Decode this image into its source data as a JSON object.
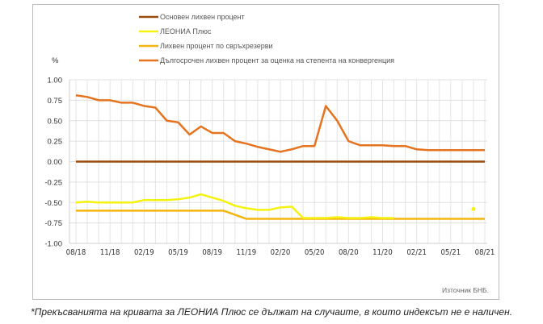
{
  "chart_data": {
    "type": "line",
    "ylabel": "%",
    "ylim": [
      -1.0,
      1.0
    ],
    "yticks": [
      "1.00",
      "0.75",
      "0.50",
      "0.25",
      "0.00",
      "-0.25",
      "-0.50",
      "-0.75",
      "-1.00"
    ],
    "ytick_values": [
      1.0,
      0.75,
      0.5,
      0.25,
      0.0,
      -0.25,
      -0.5,
      -0.75,
      -1.0
    ],
    "x": [
      "08/18",
      "09/18",
      "10/18",
      "11/18",
      "12/18",
      "01/19",
      "02/19",
      "03/19",
      "04/19",
      "05/19",
      "06/19",
      "07/19",
      "08/19",
      "09/19",
      "10/19",
      "11/19",
      "12/19",
      "01/20",
      "02/20",
      "03/20",
      "04/20",
      "05/20",
      "06/20",
      "07/20",
      "08/20",
      "09/20",
      "10/20",
      "11/20",
      "12/20",
      "01/21",
      "02/21",
      "03/21",
      "04/21",
      "05/21",
      "06/21",
      "07/21",
      "08/21"
    ],
    "xtick_labels": [
      "08/18",
      "11/18",
      "02/19",
      "05/19",
      "08/19",
      "11/19",
      "02/20",
      "05/20",
      "08/20",
      "11/20",
      "02/21",
      "05/21",
      "08/21"
    ],
    "grid": true,
    "legend_placement": "top",
    "series": [
      {
        "name": "Основен лихвен процент",
        "color": "#9c4a0c",
        "values": [
          0,
          0,
          0,
          0,
          0,
          0,
          0,
          0,
          0,
          0,
          0,
          0,
          0,
          0,
          0,
          0,
          0,
          0,
          0,
          0,
          0,
          0,
          0,
          0,
          0,
          0,
          0,
          0,
          0,
          0,
          0,
          0,
          0,
          0,
          0,
          0,
          0
        ]
      },
      {
        "name": "ЛЕОНИА Плюс",
        "color": "#f5f20e",
        "values": [
          -0.5,
          -0.49,
          -0.5,
          -0.5,
          -0.5,
          -0.5,
          -0.47,
          -0.47,
          -0.47,
          -0.46,
          -0.44,
          -0.4,
          -0.44,
          -0.48,
          -0.54,
          -0.57,
          -0.59,
          -0.59,
          -0.56,
          -0.55,
          -0.69,
          -0.69,
          -0.69,
          -0.68,
          -0.69,
          -0.69,
          -0.68,
          -0.69,
          -0.69,
          null,
          null,
          null,
          null,
          null,
          null,
          -0.58,
          null
        ]
      },
      {
        "name": "Лихвен процент по свръхрезерви",
        "color": "#f5b50f",
        "values": [
          -0.6,
          -0.6,
          -0.6,
          -0.6,
          -0.6,
          -0.6,
          -0.6,
          -0.6,
          -0.6,
          -0.6,
          -0.6,
          -0.6,
          -0.6,
          -0.6,
          -0.65,
          -0.7,
          -0.7,
          -0.7,
          -0.7,
          -0.7,
          -0.7,
          -0.7,
          -0.7,
          -0.7,
          -0.7,
          -0.7,
          -0.7,
          -0.7,
          -0.7,
          -0.7,
          -0.7,
          -0.7,
          -0.7,
          -0.7,
          -0.7,
          -0.7,
          -0.7
        ]
      },
      {
        "name": "Дългосрочен лихвен процент за оценка на степента на конвергенция",
        "color": "#e5731f",
        "values": [
          0.81,
          0.79,
          0.75,
          0.75,
          0.72,
          0.72,
          0.68,
          0.66,
          0.5,
          0.48,
          0.33,
          0.43,
          0.35,
          0.35,
          0.25,
          0.22,
          0.18,
          0.15,
          0.12,
          0.15,
          0.19,
          0.19,
          0.68,
          0.5,
          0.25,
          0.2,
          0.2,
          0.2,
          0.19,
          0.19,
          0.15,
          0.14,
          0.14,
          0.14,
          0.14,
          0.14,
          0.14
        ]
      }
    ],
    "source": "Източник БНБ."
  },
  "footnote": "*Прекъсванията на кривата за ЛЕОНИА Плюс се дължат на случаите, в които индексът не е наличен."
}
